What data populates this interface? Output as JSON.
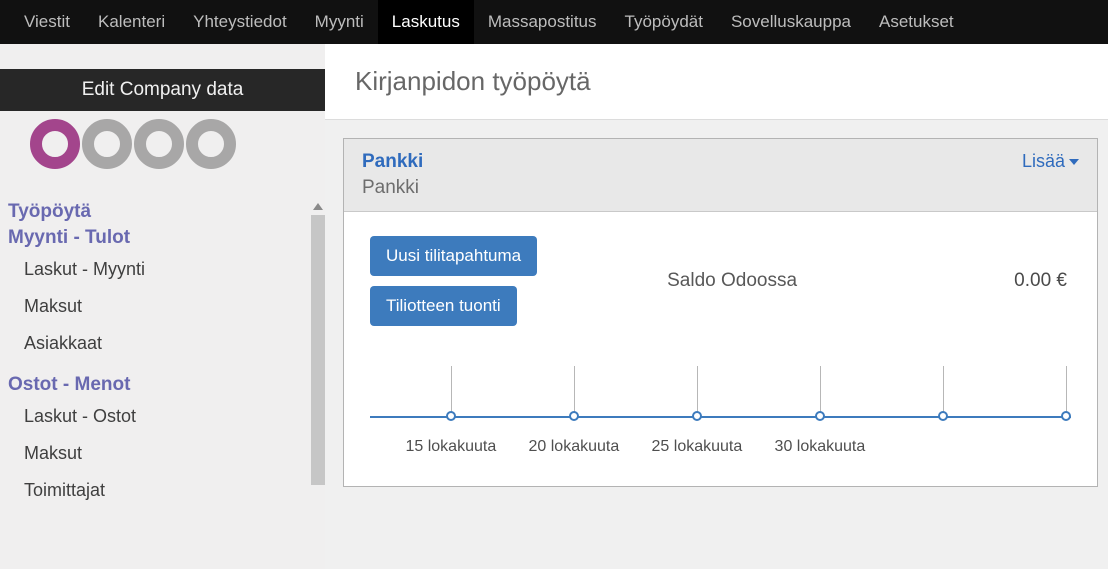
{
  "topnav": {
    "items": [
      {
        "label": "Viestit"
      },
      {
        "label": "Kalenteri"
      },
      {
        "label": "Yhteystiedot"
      },
      {
        "label": "Myynti"
      },
      {
        "label": "Laskutus",
        "active": true
      },
      {
        "label": "Massapostitus"
      },
      {
        "label": "Työpöydät"
      },
      {
        "label": "Sovelluskauppa"
      },
      {
        "label": "Asetukset"
      }
    ]
  },
  "sidebar": {
    "header": "Edit Company data",
    "logo_colors": [
      "#a3458c",
      "#a8a7a7",
      "#a8a7a7",
      "#a8a7a7"
    ],
    "sections": [
      {
        "heading": "Työpöytä",
        "items": []
      },
      {
        "heading": "Myynti - Tulot",
        "items": [
          "Laskut - Myynti",
          "Maksut",
          "Asiakkaat"
        ]
      },
      {
        "heading": "Ostot - Menot",
        "items": [
          "Laskut - Ostot",
          "Maksut",
          "Toimittajat"
        ]
      }
    ]
  },
  "main": {
    "page_title": "Kirjanpidon työpöytä",
    "card": {
      "title": "Pankki",
      "subtitle": "Pankki",
      "more_label": "Lisää",
      "buttons": {
        "new_transaction": "Uusi tilitapahtuma",
        "import_statement": "Tiliotteen tuonti"
      },
      "balance": {
        "label": "Saldo Odoossa",
        "value": "0.00 €"
      },
      "chart": {
        "type": "line",
        "line_color": "#3d7bbd",
        "point_fill": "#ffffff",
        "tick_color": "#b7b7b7",
        "label_color": "#4f4f4f",
        "ylim": [
          0,
          0
        ],
        "tick_positions_pct": [
          11.5,
          29,
          46.5,
          64,
          81.5,
          99
        ],
        "labeled_ticks": [
          {
            "pos_pct": 11.5,
            "label": "15 lokakuuta"
          },
          {
            "pos_pct": 29,
            "label": "20 lokakuuta"
          },
          {
            "pos_pct": 46.5,
            "label": "25 lokakuuta"
          },
          {
            "pos_pct": 64,
            "label": "30 lokakuuta"
          }
        ]
      }
    }
  }
}
